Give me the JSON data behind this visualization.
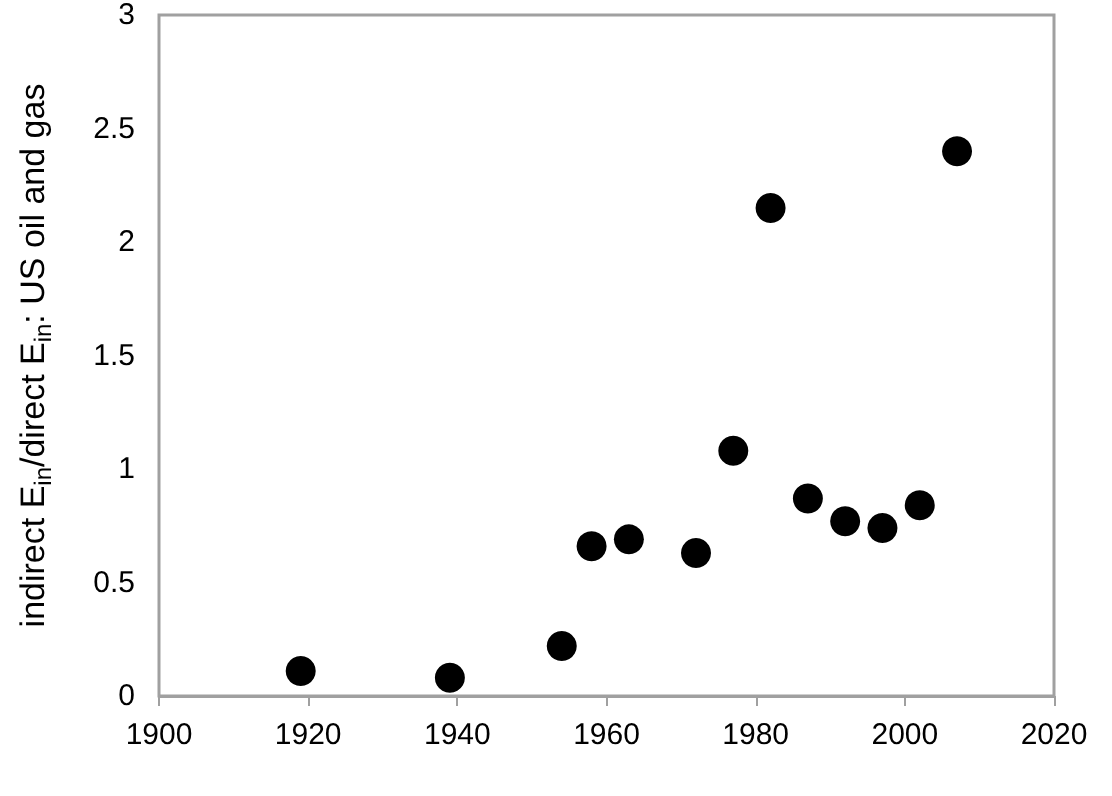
{
  "chart_data": {
    "type": "scatter",
    "ylabel": "indirect E$_{in}$/direct E$_{in}$: US oil and gas",
    "x": [
      1919,
      1939,
      1954,
      1958,
      1963,
      1972,
      1977,
      1982,
      1987,
      1992,
      1997,
      2002,
      2007
    ],
    "values": [
      0.11,
      0.08,
      0.22,
      0.66,
      0.69,
      0.63,
      1.08,
      2.15,
      0.87,
      0.77,
      0.74,
      0.84,
      2.4
    ],
    "color": "#000000",
    "marker": "circle",
    "xlim": [
      1900,
      2020
    ],
    "xticks": [
      1900,
      1920,
      1940,
      1960,
      1980,
      2000,
      2020
    ],
    "ylim": [
      0,
      3
    ],
    "yticks": [
      0,
      0.5,
      1,
      1.5,
      2,
      2.5,
      3
    ],
    "grid": false
  }
}
